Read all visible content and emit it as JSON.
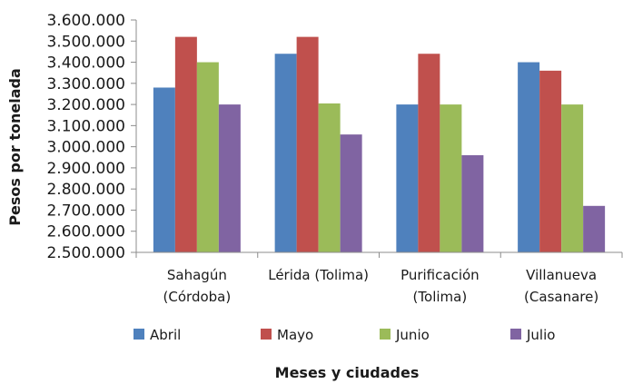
{
  "chart_data": {
    "type": "bar",
    "xlabel": "Meses y ciudades",
    "ylabel": "Pesos por tonelada",
    "ylim": [
      2500000,
      3600000
    ],
    "ytick_step": 100000,
    "ytick_labels": [
      "2.500.000",
      "2.600.000",
      "2.700.000",
      "2.800.000",
      "2.900.000",
      "3.000.000",
      "3.100.000",
      "3.200.000",
      "3.300.000",
      "3.400.000",
      "3.500.000",
      "3.600.000"
    ],
    "categories": [
      [
        "Sahagún",
        "(Córdoba)"
      ],
      [
        "Lérida (Tolima)"
      ],
      [
        "Purificación",
        "(Tolima)"
      ],
      [
        "Villanueva",
        "(Casanare)"
      ]
    ],
    "series": [
      {
        "name": "Abril",
        "color": "#4f81bd",
        "values": [
          3280000,
          3440000,
          3200000,
          3400000
        ]
      },
      {
        "name": "Mayo",
        "color": "#c0504d",
        "values": [
          3520000,
          3520000,
          3440000,
          3360000
        ]
      },
      {
        "name": "Junio",
        "color": "#9bbb59",
        "values": [
          3400000,
          3205000,
          3200000,
          3200000
        ]
      },
      {
        "name": "Julio",
        "color": "#8064a2",
        "values": [
          3200000,
          3058000,
          2960000,
          2720000
        ]
      }
    ],
    "grid": false,
    "legend_position": "bottom"
  }
}
